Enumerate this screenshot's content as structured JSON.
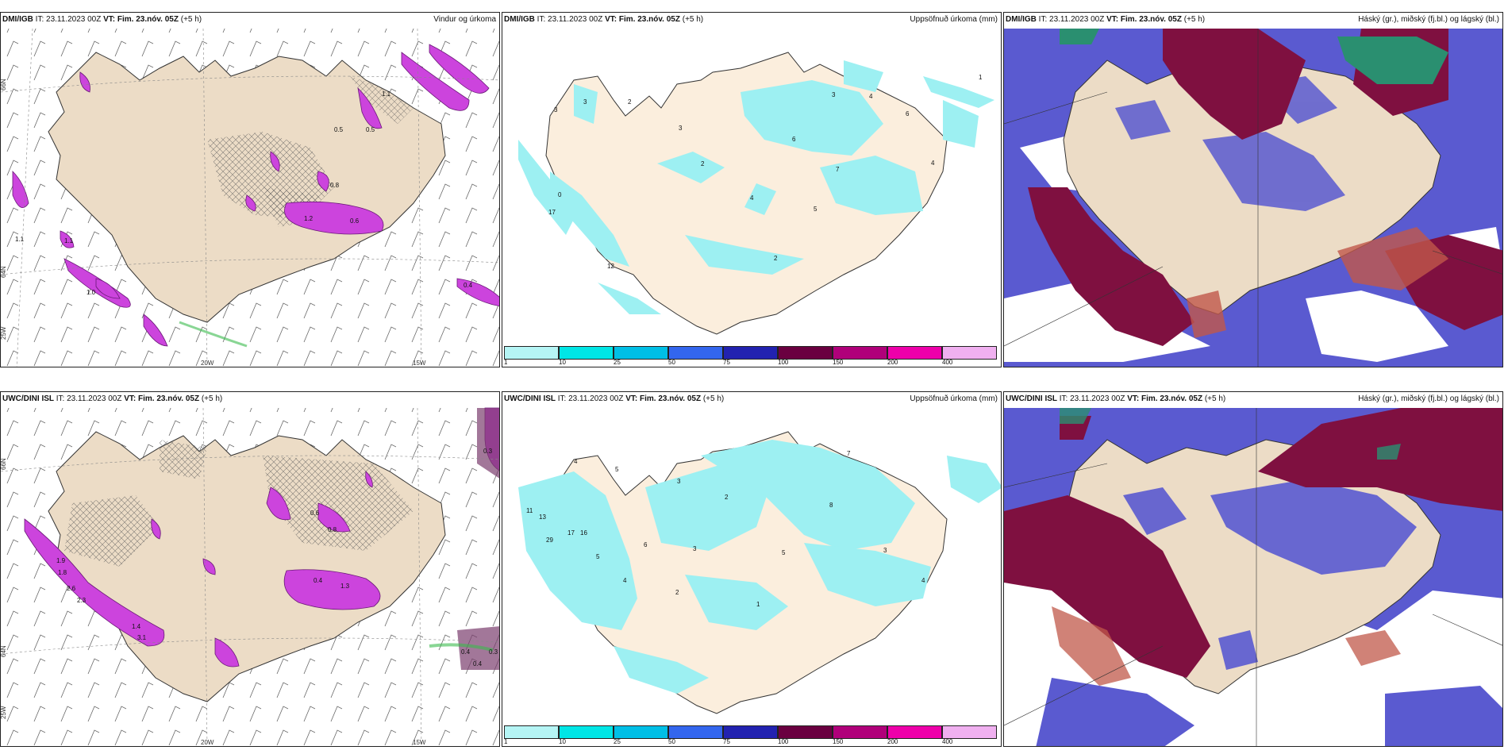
{
  "rows": [
    {
      "model": "DMI/IGB",
      "it": "IT: 23.11.2023 00Z",
      "vt_label": "VT:",
      "vt": "Fim. 23.nóv. 05Z",
      "lead": "(+5 h)"
    },
    {
      "model": "UWC/DINI ISL",
      "it": "IT: 23.11.2023 00Z",
      "vt_label": "VT:",
      "vt": "Fim. 23.nóv. 05Z",
      "lead": "(+5 h)"
    }
  ],
  "panel_titles": {
    "wind": "Vindur og úrkoma",
    "accum": "Uppsöfnuð úrkoma (mm)",
    "cloud": "Háský (gr.), miðský (fj.bl.) og lágský (bl.)"
  },
  "axis": {
    "lon_20": "20W",
    "lon_15": "15W",
    "lon_25": "25W",
    "lat_66": "66N",
    "lat_64": "64N"
  },
  "legend": {
    "labels": [
      "1",
      "10",
      "25",
      "50",
      "75",
      "100",
      "150",
      "200",
      "400"
    ],
    "colors": [
      "#b5f5f5",
      "#00e6e6",
      "#00bfe6",
      "#3366ee",
      "#2222b0",
      "#6a0040",
      "#b0007a",
      "#ee00aa",
      "#f0b0f0"
    ]
  },
  "colors": {
    "land": "#ecdcc6",
    "land_light": "#fbeedd",
    "precip": "#cc44dd",
    "accum_fill": "#9df0f2",
    "high": "#2a8f70",
    "mid": "#7f1040",
    "low": "#5050c8"
  },
  "labels_wind_top": [
    "1.1",
    "0.5",
    "0.8",
    "0.5",
    "0.6",
    "1.2",
    "1.1",
    "1.1",
    "1.0",
    "0.4"
  ],
  "labels_wind_bottom": [
    "0.3",
    "0.4",
    "1.3",
    "1.4",
    "2.3",
    "2.6",
    "1.9",
    "0.6",
    "0.8",
    "0.4",
    "0.3",
    "0.4",
    "3.1",
    "1.8"
  ],
  "labels_accum_top": [
    "3",
    "2",
    "3",
    "6",
    "3",
    "4",
    "2",
    "7",
    "4",
    "5",
    "2",
    "12",
    "17",
    "0",
    "3",
    "6",
    "4",
    "1"
  ],
  "labels_accum_bottom": [
    "4",
    "5",
    "3",
    "2",
    "11",
    "13",
    "29",
    "17",
    "16",
    "5",
    "4",
    "6",
    "3",
    "2",
    "1",
    "5",
    "8",
    "7",
    "3",
    "4"
  ]
}
